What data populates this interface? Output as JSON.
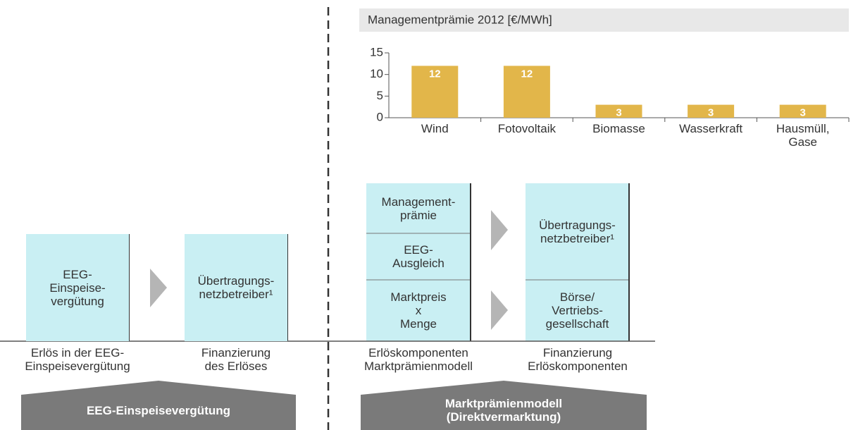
{
  "chart_data": {
    "type": "bar",
    "title": "Managementprämie 2012 [€/MWh]",
    "categories": [
      "Wind",
      "Fotovoltaik",
      "Biomasse",
      "Wasserkraft",
      "Hausmüll,\nGase"
    ],
    "values": [
      12,
      12,
      3,
      3,
      3
    ],
    "color": "#e2b64a",
    "ylim": [
      0,
      15
    ],
    "yticks": [
      0,
      5,
      10,
      15
    ]
  },
  "left": {
    "boxes": [
      "EEG-\nEinspeise-\nvergütung",
      "Übertragungs-\nnetzbetreiber¹"
    ],
    "captions": [
      "Erlös in der EEG-\nEinspeisevergütung",
      "Finanzierung\ndes Erlöses"
    ],
    "banner": "EEG-Einspeisevergütung"
  },
  "right": {
    "column1": [
      "Management-\nprämie",
      "EEG-\nAusgleich",
      "Marktpreis\nx\nMenge"
    ],
    "column2": [
      "Übertragungs-\nnetzbetreiber¹",
      "Börse/\nVertriebs-\ngesellschaft"
    ],
    "captions": [
      "Erlöskomponenten\nMarktprämienmodell",
      "Finanzierung\nErlöskomponenten"
    ],
    "banner": "Marktprämienmodell\n(Direktvermarktung)"
  }
}
